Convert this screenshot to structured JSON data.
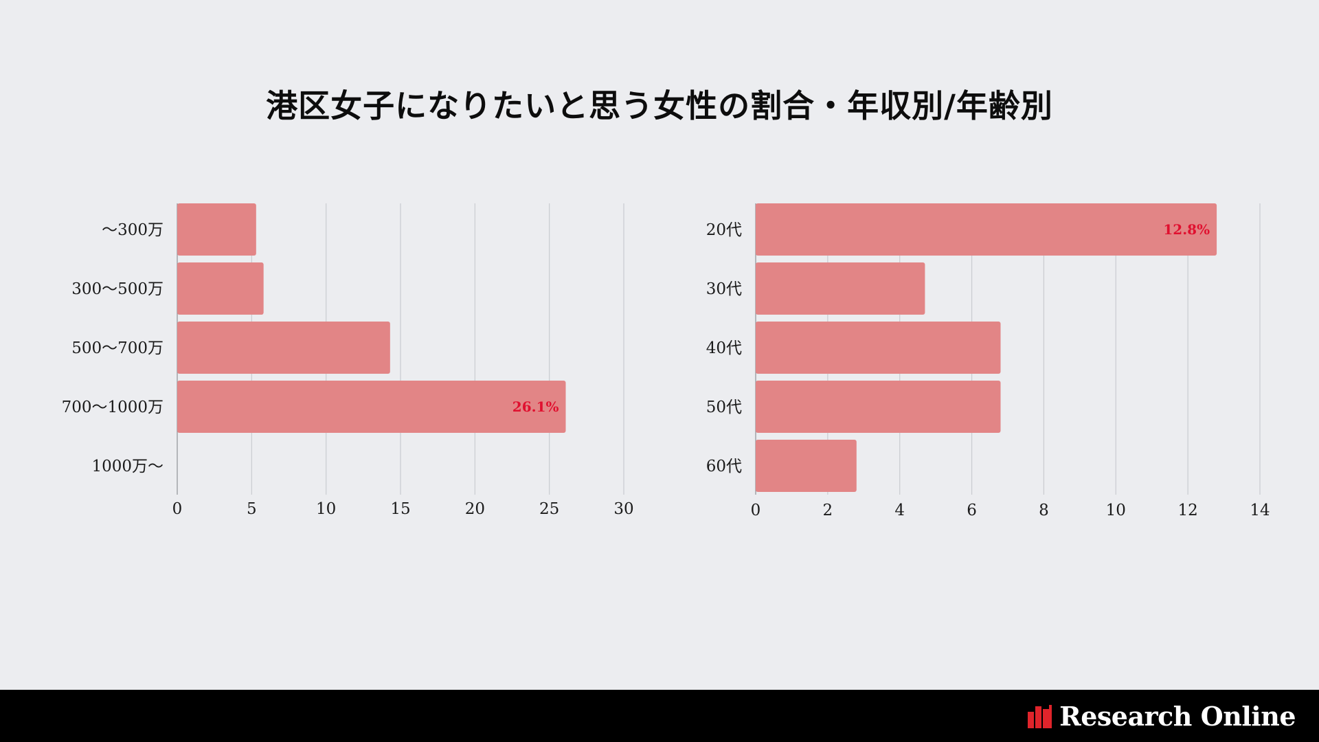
{
  "page": {
    "title": "港区女子になりたいと思う女性の割合・年収別/年齢別"
  },
  "chart_data": [
    {
      "type": "bar",
      "orientation": "horizontal",
      "categories": [
        "〜300万",
        "300〜500万",
        "500〜700万",
        "700〜1000万",
        "1000万〜"
      ],
      "values": [
        5.3,
        5.8,
        14.3,
        26.1,
        0
      ],
      "xlim": [
        0,
        30
      ],
      "xticks": [
        "0",
        "5",
        "10",
        "15",
        "20",
        "25",
        "30"
      ],
      "data_labels": [
        {
          "category_index": 3,
          "text": "26.1%"
        }
      ],
      "grid": "vertical",
      "bar_color": "#E28586",
      "label_color": "#E0102F"
    },
    {
      "type": "bar",
      "orientation": "horizontal",
      "categories": [
        "20代",
        "30代",
        "40代",
        "50代",
        "60代"
      ],
      "values": [
        12.8,
        4.7,
        6.8,
        6.8,
        2.8
      ],
      "xlim": [
        0,
        14
      ],
      "xticks": [
        "0",
        "2",
        "4",
        "6",
        "8",
        "10",
        "12",
        "14"
      ],
      "data_labels": [
        {
          "category_index": 0,
          "text": "12.8%"
        }
      ],
      "grid": "vertical",
      "bar_color": "#E28586",
      "label_color": "#E0102F"
    }
  ],
  "footer": {
    "brand": "Research Online",
    "logo_icon": "bar-chart-logo-icon",
    "logo_color": "#E0242B"
  }
}
